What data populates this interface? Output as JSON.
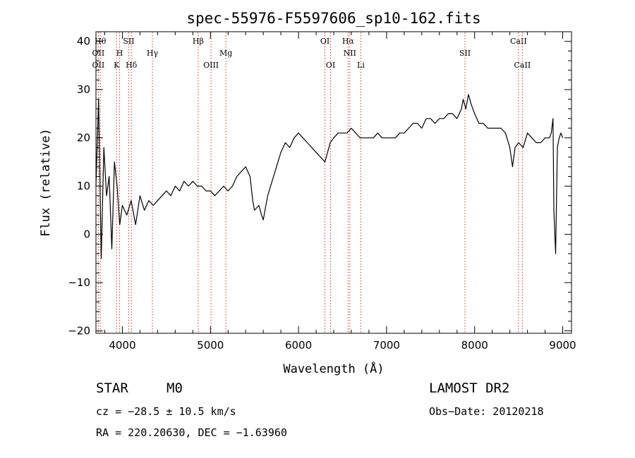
{
  "chart_data": {
    "type": "line",
    "title": "spec-55976-F5597606_sp10-162.fits",
    "xlabel": "Wavelength (Å)",
    "ylabel": "Flux (relative)",
    "xlim": [
      3700,
      9100
    ],
    "ylim": [
      -20.5,
      42
    ],
    "xticks": [
      4000,
      5000,
      6000,
      7000,
      8000,
      9000
    ],
    "yticks": [
      -20,
      -10,
      0,
      10,
      20,
      30,
      40
    ],
    "grid": false,
    "series": [
      {
        "x": [
          3700,
          3730,
          3760,
          3790,
          3820,
          3850,
          3880,
          3910,
          3940,
          3970,
          4000,
          4050,
          4100,
          4150,
          4200,
          4250,
          4300,
          4350,
          4400,
          4450,
          4500,
          4550,
          4600,
          4650,
          4700,
          4750,
          4800,
          4850,
          4900,
          4950,
          5000,
          5050,
          5100,
          5150,
          5200,
          5250,
          5300,
          5350,
          5400,
          5450,
          5480,
          5500,
          5550,
          5580,
          5600,
          5620,
          5650,
          5700,
          5750,
          5800,
          5850,
          5900,
          5950,
          6000,
          6050,
          6100,
          6150,
          6200,
          6250,
          6300,
          6330,
          6360,
          6400,
          6450,
          6500,
          6550,
          6600,
          6650,
          6700,
          6750,
          6800,
          6850,
          6900,
          6950,
          7000,
          7050,
          7100,
          7150,
          7200,
          7250,
          7300,
          7350,
          7400,
          7450,
          7500,
          7550,
          7600,
          7650,
          7700,
          7750,
          7800,
          7850,
          7870,
          7900,
          7930,
          7960,
          8000,
          8050,
          8100,
          8150,
          8200,
          8250,
          8300,
          8350,
          8400,
          8430,
          8460,
          8500,
          8550,
          8600,
          8650,
          8700,
          8750,
          8800,
          8850,
          8870,
          8890,
          8900,
          8920,
          8940,
          8960,
          8980,
          9000
        ],
        "y": [
          10,
          28,
          -5,
          18,
          8,
          12,
          -3,
          15,
          10,
          2,
          6,
          4,
          7,
          2,
          8,
          5,
          7,
          6,
          7,
          8,
          9,
          8,
          10,
          9,
          11,
          10,
          11,
          10,
          10,
          9,
          9,
          8,
          9,
          10,
          9,
          10,
          12,
          13,
          14,
          12,
          7,
          5,
          6,
          4,
          3,
          5,
          8,
          11,
          14,
          17,
          19,
          18,
          20,
          21,
          20,
          19,
          18,
          17,
          16,
          15,
          17,
          19,
          20,
          21,
          21,
          21,
          22,
          21,
          20,
          20,
          20,
          20,
          21,
          20,
          20,
          20,
          20,
          21,
          21,
          22,
          23,
          23,
          22,
          24,
          24,
          23,
          24,
          24,
          25,
          25,
          24,
          26,
          28,
          26,
          29,
          27,
          25,
          23,
          23,
          22,
          22,
          22,
          22,
          21,
          18,
          14,
          18,
          19,
          18,
          21,
          20,
          19,
          19,
          20,
          20,
          21,
          24,
          5,
          -4,
          18,
          20,
          21,
          20
        ]
      }
    ],
    "lines": [
      {
        "x": 3727,
        "label": "OII",
        "row": 2
      },
      {
        "x": 3727,
        "label": "OII",
        "row": 3
      },
      {
        "x": 3750,
        "label": "Hθ",
        "row": 1
      },
      {
        "x": 3934,
        "label": "K",
        "row": 3
      },
      {
        "x": 3969,
        "label": "H",
        "row": 2
      },
      {
        "x": 4072,
        "label": "SII",
        "row": 1
      },
      {
        "x": 4102,
        "label": "Hδ",
        "row": 3
      },
      {
        "x": 4341,
        "label": "Hγ",
        "row": 2
      },
      {
        "x": 4861,
        "label": "Hβ",
        "row": 1
      },
      {
        "x": 5007,
        "label": "OIII",
        "row": 3
      },
      {
        "x": 5175,
        "label": "Mg",
        "row": 2
      },
      {
        "x": 6300,
        "label": "OI",
        "row": 1
      },
      {
        "x": 6364,
        "label": "OI",
        "row": 3
      },
      {
        "x": 6563,
        "label": "Hα",
        "row": 1
      },
      {
        "x": 6583,
        "label": "NII",
        "row": 2
      },
      {
        "x": 6708,
        "label": "Li",
        "row": 3
      },
      {
        "x": 7890,
        "label": "SII",
        "row": 2
      },
      {
        "x": 8498,
        "label": "CaII",
        "row": 1
      },
      {
        "x": 8542,
        "label": "CaII",
        "row": 3
      }
    ],
    "line_color": "#cc3b2f"
  },
  "info": {
    "class": "STAR",
    "subclass": "M0",
    "survey": "LAMOST DR2",
    "cz": "cz = −28.5 ± 10.5 km/s",
    "obs_date": "Obs−Date: 20120218",
    "radec": "RA = 220.20630, DEC =  −1.63960"
  }
}
